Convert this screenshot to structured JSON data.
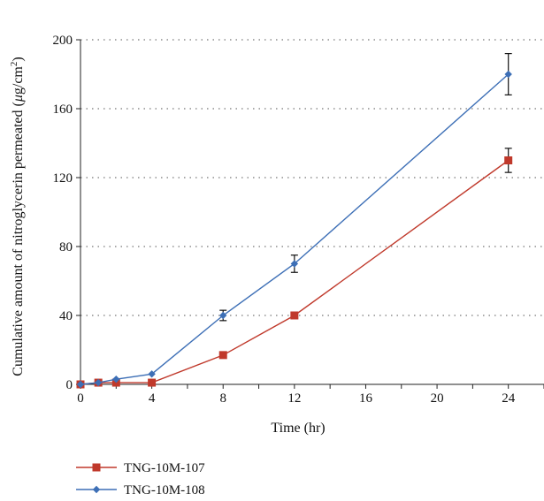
{
  "chart_data": {
    "type": "line",
    "xlabel": "Time (hr)",
    "ylabel_html": {
      "prefix": "Cumulative amount of nitroglycerin permeated (",
      "mu": "μ",
      "unit": "g/cm",
      "exponent": "2",
      "suffix": ")"
    },
    "x_ticks": [
      0,
      4,
      8,
      12,
      16,
      20,
      24
    ],
    "y_ticks": [
      0,
      40,
      80,
      120,
      160,
      200
    ],
    "xlim": [
      0,
      26
    ],
    "ylim": [
      0,
      200
    ],
    "grid": "horizontal dotted",
    "legend_position": "bottom-left",
    "series": [
      {
        "name": "TNG-10M-107",
        "color": "#c0392b",
        "marker": "square",
        "x": [
          0,
          1,
          2,
          4,
          8,
          12,
          24
        ],
        "values": [
          0,
          1,
          1,
          1,
          17,
          40,
          130
        ],
        "error": [
          0,
          0,
          0,
          0,
          0,
          0,
          7
        ]
      },
      {
        "name": "TNG-10M-108",
        "color": "#3d6fb6",
        "marker": "diamond",
        "x": [
          0,
          1,
          2,
          4,
          8,
          12,
          24
        ],
        "values": [
          0,
          1,
          3,
          6,
          40,
          70,
          180
        ],
        "error": [
          0,
          0,
          0,
          0,
          3,
          5,
          12
        ]
      }
    ]
  }
}
